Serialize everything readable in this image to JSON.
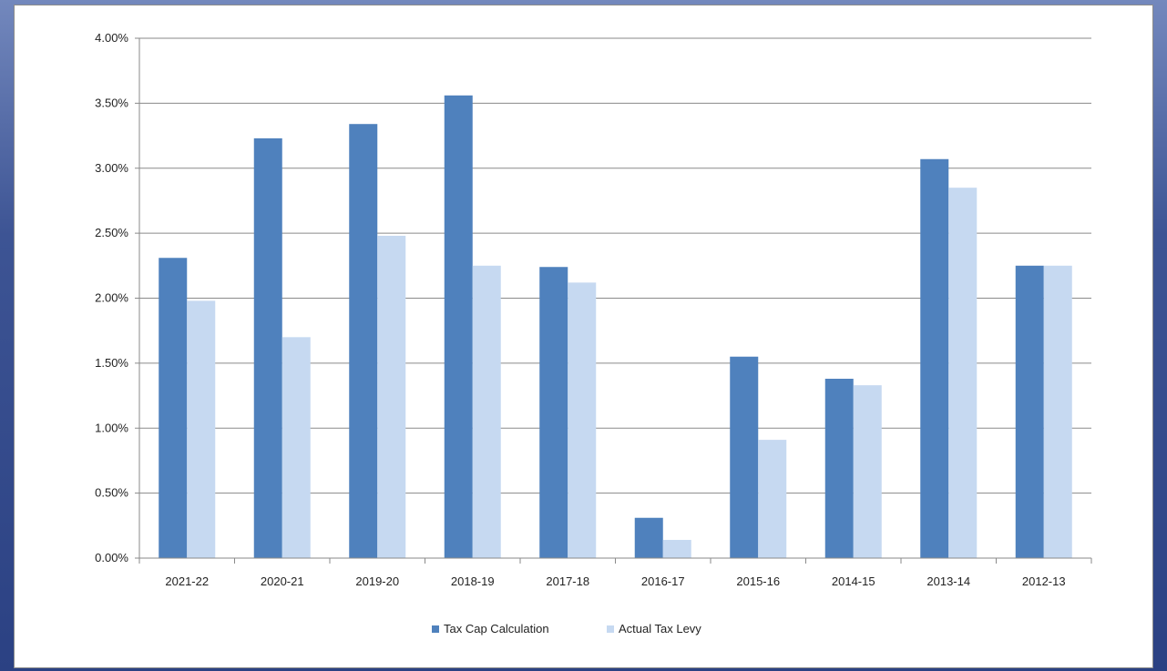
{
  "chart_data": {
    "type": "bar",
    "categories": [
      "2021-22",
      "2020-21",
      "2019-20",
      "2018-19",
      "2017-18",
      "2016-17",
      "2015-16",
      "2014-15",
      "2013-14",
      "2012-13"
    ],
    "series": [
      {
        "name": "Tax Cap Calculation",
        "values": [
          2.31,
          3.23,
          3.34,
          3.56,
          2.24,
          0.31,
          1.55,
          1.38,
          3.07,
          2.25
        ],
        "color": "#4f81bd"
      },
      {
        "name": "Actual Tax Levy",
        "values": [
          1.98,
          1.7,
          2.48,
          2.25,
          2.12,
          0.14,
          0.91,
          1.33,
          2.85,
          2.25
        ],
        "color": "#c6d9f1"
      }
    ],
    "ylim": [
      0,
      4.0
    ],
    "yticks": [
      "0.00%",
      "0.50%",
      "1.00%",
      "1.50%",
      "2.00%",
      "2.50%",
      "3.00%",
      "3.50%",
      "4.00%"
    ],
    "ytick_values": [
      0,
      0.5,
      1.0,
      1.5,
      2.0,
      2.5,
      3.0,
      3.5,
      4.0
    ],
    "grid": true,
    "legend_position": "bottom",
    "title": "",
    "xlabel": "",
    "ylabel": ""
  }
}
